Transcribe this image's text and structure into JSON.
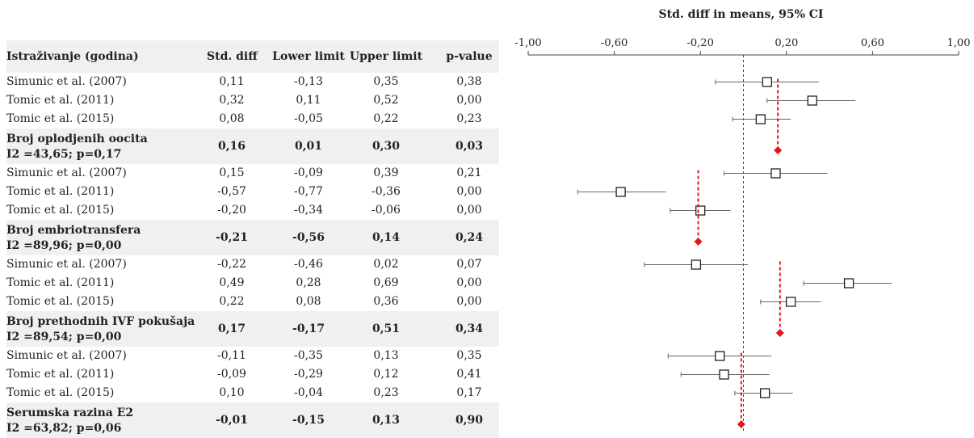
{
  "headers": {
    "study": "Istraživanje (godina)",
    "std_diff": "Std. diff",
    "lower": "Lower limit",
    "upper": "Upper limit",
    "p": "p-value"
  },
  "marker_color": "#e8141c",
  "chart_data": {
    "type": "forest",
    "title": "Std. diff in means, 95% CI",
    "xlim": [
      -1.0,
      1.0
    ],
    "xticks": [
      -1.0,
      -0.6,
      -0.2,
      0.2,
      0.6,
      1.0
    ],
    "xtick_labels": [
      "-1,00",
      "-0,60",
      "-0,20",
      "0,20",
      "0,60",
      "1,00"
    ],
    "reference_line": 0,
    "groups": [
      {
        "name": "Broj oplodjenih oocita",
        "stats": "I2 =43,65; p=0,17",
        "pooled": {
          "value": 0.16,
          "lower": 0.01,
          "upper": 0.3,
          "std_diff": "0,16",
          "lower_text": "0,01",
          "upper_text": "0,30",
          "p": "0,03"
        },
        "studies": [
          {
            "label": "Simunic et al. (2007)",
            "value": 0.11,
            "lower": -0.13,
            "upper": 0.35,
            "std_diff": "0,11",
            "lower_text": "-0,13",
            "upper_text": "0,35",
            "p": "0,38"
          },
          {
            "label": "Tomic et al. (2011)",
            "value": 0.32,
            "lower": 0.11,
            "upper": 0.52,
            "std_diff": "0,32",
            "lower_text": "0,11",
            "upper_text": "0,52",
            "p": "0,00"
          },
          {
            "label": "Tomic et al. (2015)",
            "value": 0.08,
            "lower": -0.05,
            "upper": 0.22,
            "std_diff": "0,08",
            "lower_text": "-0,05",
            "upper_text": "0,22",
            "p": "0,23"
          }
        ]
      },
      {
        "name": "Broj embriotransfera",
        "stats": "I2 =89,96; p=0,00",
        "pooled": {
          "value": -0.21,
          "lower": -0.56,
          "upper": 0.14,
          "std_diff": "-0,21",
          "lower_text": "-0,56",
          "upper_text": "0,14",
          "p": "0,24"
        },
        "studies": [
          {
            "label": "Simunic et al. (2007)",
            "value": 0.15,
            "lower": -0.09,
            "upper": 0.39,
            "std_diff": "0,15",
            "lower_text": "-0,09",
            "upper_text": "0,39",
            "p": "0,21"
          },
          {
            "label": "Tomic et al. (2011)",
            "value": -0.57,
            "lower": -0.77,
            "upper": -0.36,
            "std_diff": "-0,57",
            "lower_text": "-0,77",
            "upper_text": "-0,36",
            "p": "0,00"
          },
          {
            "label": "Tomic et al. (2015)",
            "value": -0.2,
            "lower": -0.34,
            "upper": -0.06,
            "std_diff": "-0,20",
            "lower_text": "-0,34",
            "upper_text": "-0,06",
            "p": "0,00"
          }
        ]
      },
      {
        "name": "Broj prethodnih IVF pokušaja",
        "stats": "I2 =89,54; p=0,00",
        "pooled": {
          "value": 0.17,
          "lower": -0.17,
          "upper": 0.51,
          "std_diff": "0,17",
          "lower_text": "-0,17",
          "upper_text": "0,51",
          "p": "0,34"
        },
        "studies": [
          {
            "label": "Simunic et al. (2007)",
            "value": -0.22,
            "lower": -0.46,
            "upper": 0.02,
            "std_diff": "-0,22",
            "lower_text": "-0,46",
            "upper_text": "0,02",
            "p": "0,07"
          },
          {
            "label": "Tomic et al. (2011)",
            "value": 0.49,
            "lower": 0.28,
            "upper": 0.69,
            "std_diff": "0,49",
            "lower_text": "0,28",
            "upper_text": "0,69",
            "p": "0,00"
          },
          {
            "label": "Tomic et al. (2015)",
            "value": 0.22,
            "lower": 0.08,
            "upper": 0.36,
            "std_diff": "0,22",
            "lower_text": "0,08",
            "upper_text": "0,36",
            "p": "0,00"
          }
        ]
      },
      {
        "name": "Serumska razina E2",
        "stats": "I2 =63,82; p=0,06",
        "pooled": {
          "value": -0.01,
          "lower": -0.15,
          "upper": 0.13,
          "std_diff": "-0,01",
          "lower_text": "-0,15",
          "upper_text": "0,13",
          "p": "0,90"
        },
        "studies": [
          {
            "label": "Simunic et al. (2007)",
            "value": -0.11,
            "lower": -0.35,
            "upper": 0.13,
            "std_diff": "-0,11",
            "lower_text": "-0,35",
            "upper_text": "0,13",
            "p": "0,35"
          },
          {
            "label": "Tomic et al. (2011)",
            "value": -0.09,
            "lower": -0.29,
            "upper": 0.12,
            "std_diff": "-0,09",
            "lower_text": "-0,29",
            "upper_text": "0,12",
            "p": "0,41"
          },
          {
            "label": "Tomic et al. (2015)",
            "value": 0.1,
            "lower": -0.04,
            "upper": 0.23,
            "std_diff": "0,10",
            "lower_text": "-0,04",
            "upper_text": "0,23",
            "p": "0,17"
          }
        ]
      }
    ]
  }
}
